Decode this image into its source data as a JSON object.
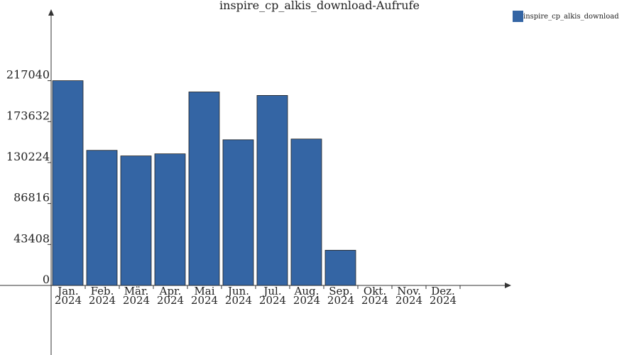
{
  "chart_data": {
    "type": "bar",
    "title": "inspire_cp_alkis_download-Aufrufe",
    "categories": [
      "Jan.\n2024",
      "Feb.\n2024",
      "Mär.\n2024",
      "Apr.\n2024",
      "Mai\n2024",
      "Jun.\n2024",
      "Jul.\n2024",
      "Aug.\n2024",
      "Sep.\n2024",
      "Okt.\n2024",
      "Nov.\n2024",
      "Dez.\n2024"
    ],
    "series": [
      {
        "name": "inspire_cp_alkis_download",
        "color": "#3465a4",
        "values": [
          217040,
          143200,
          137300,
          139500,
          205100,
          154400,
          201400,
          155200,
          37300,
          0,
          0,
          0
        ]
      }
    ],
    "ylim": [
      0,
      286000
    ],
    "yticks": [
      0,
      43408,
      86816,
      130224,
      173632,
      217040
    ],
    "legend": "top-right"
  }
}
